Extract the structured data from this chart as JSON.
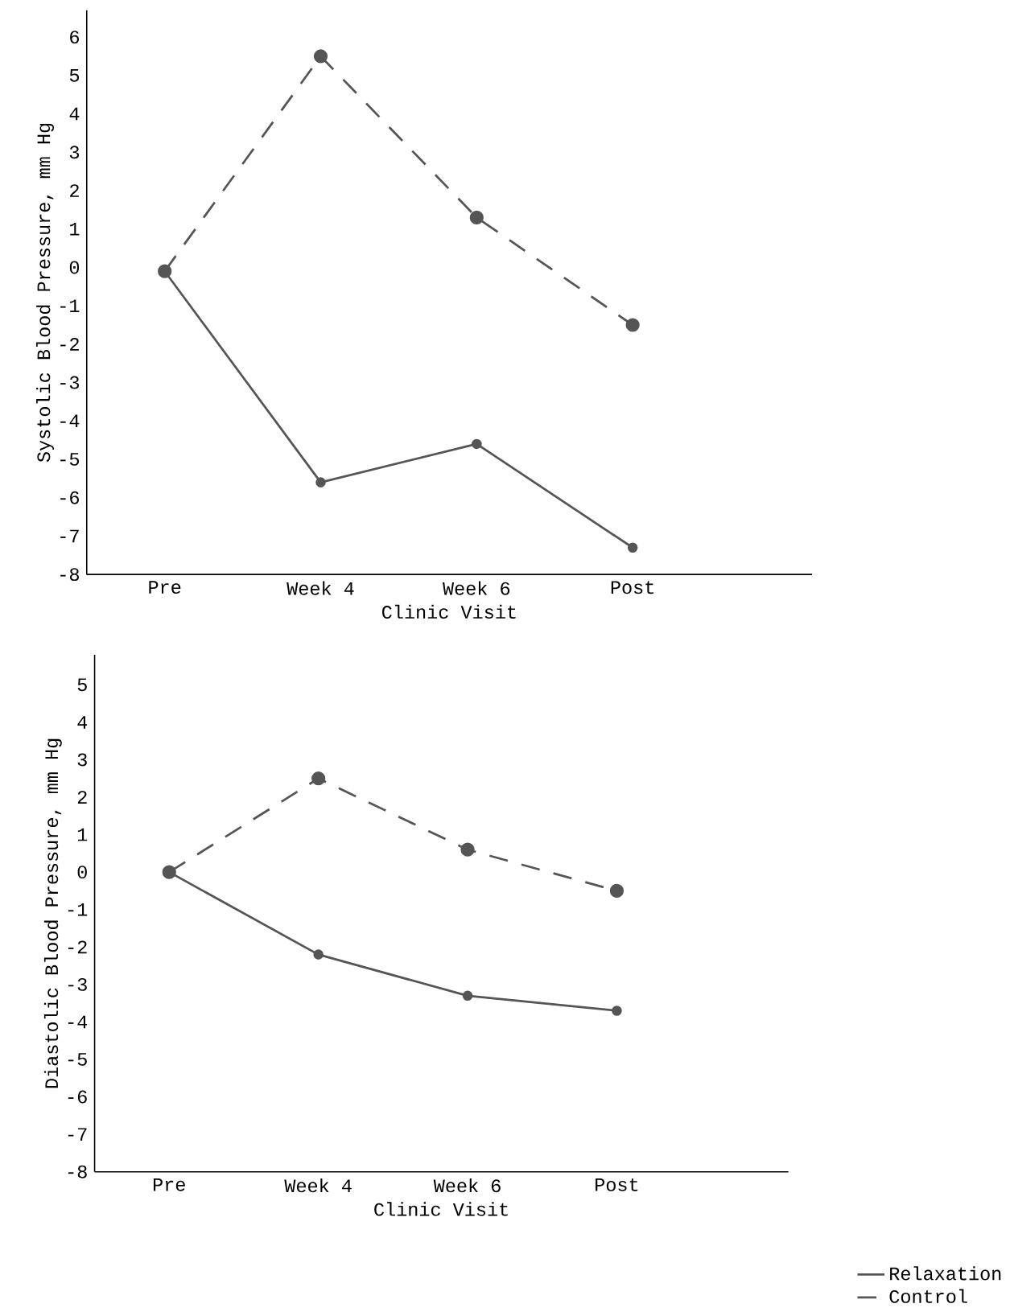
{
  "chart_data": [
    {
      "type": "line",
      "categories": [
        "Pre",
        "Week 4",
        "Week 6",
        "Post"
      ],
      "xlabel": "Clinic Visit",
      "ylabel": "Systolic Blood Pressure, mm Hg",
      "ylim": [
        -8,
        6.7
      ],
      "yticks": [
        -8,
        -7,
        -6,
        -5,
        -4,
        -3,
        -2,
        -1,
        0,
        1,
        2,
        3,
        4,
        5,
        6
      ],
      "marker": "circle",
      "legend": false,
      "series": [
        {
          "color": "#555555",
          "line_style": "solid",
          "values": [
            -0.1,
            -5.6,
            -4.6,
            -7.3
          ]
        },
        {
          "color": "#555555",
          "line_style": "dashed",
          "values": [
            -0.1,
            5.5,
            1.3,
            -1.5
          ]
        }
      ]
    },
    {
      "type": "line",
      "categories": [
        "Pre",
        "Week 4",
        "Week 6",
        "Post"
      ],
      "xlabel": "Clinic Visit",
      "ylabel": "Diastolic Blood Pressure, mm Hg",
      "ylim": [
        -8,
        5.8
      ],
      "yticks": [
        -8,
        -7,
        -6,
        -5,
        -4,
        -3,
        -2,
        -1,
        0,
        1,
        2,
        3,
        4,
        5
      ],
      "marker": "circle",
      "legend": "bottom right",
      "series": [
        {
          "name": "Relaxation",
          "color": "#555555",
          "line_style": "solid",
          "values": [
            0,
            -2.2,
            -3.3,
            -3.7
          ]
        },
        {
          "name": "Control",
          "color": "#555555",
          "line_style": "dashed",
          "values": [
            0,
            2.5,
            0.6,
            -0.5
          ]
        }
      ]
    }
  ]
}
